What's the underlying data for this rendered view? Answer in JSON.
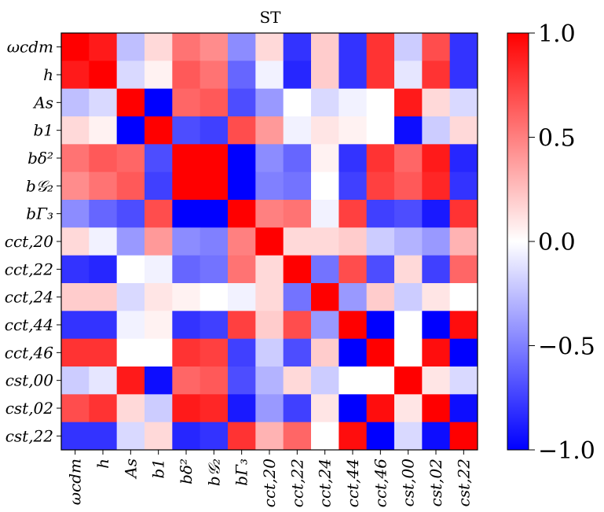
{
  "chart_data": {
    "type": "heatmap",
    "title": "ST",
    "colormap": "bwr",
    "vmin": -1.0,
    "vmax": 1.0,
    "labels": [
      "ωcdm",
      "h",
      "As",
      "b1",
      "bδ²",
      "b𝒢₂",
      "bΓ₃",
      "cct,20",
      "cct,22",
      "cct,24",
      "cct,44",
      "cct,46",
      "cst,00",
      "cst,02",
      "cst,22"
    ],
    "colorbar": {
      "ticks": [
        1.0,
        0.5,
        0.0,
        -0.5,
        -1.0
      ],
      "tick_labels": [
        "1.0",
        "0.5",
        "0.0",
        "−0.5",
        "−1.0"
      ]
    },
    "matrix": [
      [
        1.0,
        0.9,
        -0.25,
        0.15,
        0.55,
        0.45,
        -0.45,
        0.15,
        -0.8,
        0.2,
        -0.8,
        0.8,
        -0.2,
        0.7,
        -0.8
      ],
      [
        0.9,
        1.0,
        -0.15,
        0.05,
        0.65,
        0.55,
        -0.6,
        -0.05,
        -0.85,
        0.2,
        -0.8,
        0.8,
        -0.1,
        0.8,
        -0.8
      ],
      [
        -0.25,
        -0.15,
        1.0,
        -1.0,
        0.6,
        0.65,
        -0.7,
        -0.4,
        0.0,
        -0.15,
        -0.05,
        0.0,
        0.9,
        0.15,
        -0.15
      ],
      [
        0.15,
        0.05,
        -1.0,
        1.0,
        -0.7,
        -0.75,
        0.7,
        0.4,
        -0.05,
        0.1,
        0.05,
        0.0,
        -0.95,
        -0.2,
        0.15
      ],
      [
        0.55,
        0.65,
        0.6,
        -0.7,
        1.0,
        1.0,
        -1.0,
        -0.45,
        -0.6,
        0.05,
        -0.8,
        0.8,
        0.6,
        0.9,
        -0.85
      ],
      [
        0.45,
        0.55,
        0.65,
        -0.75,
        1.0,
        1.0,
        -1.0,
        -0.5,
        -0.55,
        0.0,
        -0.75,
        0.75,
        0.65,
        0.85,
        -0.8
      ],
      [
        -0.45,
        -0.6,
        -0.7,
        0.7,
        -1.0,
        -1.0,
        1.0,
        0.5,
        0.55,
        -0.05,
        0.75,
        -0.75,
        -0.7,
        -0.9,
        0.8
      ],
      [
        0.15,
        -0.05,
        -0.4,
        0.4,
        -0.45,
        -0.5,
        0.5,
        1.0,
        0.15,
        0.15,
        0.2,
        -0.2,
        -0.3,
        -0.4,
        0.3
      ],
      [
        -0.8,
        -0.85,
        0.0,
        -0.05,
        -0.6,
        -0.55,
        0.55,
        0.15,
        1.0,
        -0.55,
        0.7,
        -0.7,
        0.15,
        -0.75,
        0.6
      ],
      [
        0.2,
        0.2,
        -0.15,
        0.1,
        0.05,
        0.0,
        -0.05,
        0.15,
        -0.55,
        1.0,
        -0.4,
        0.2,
        -0.2,
        0.1,
        0.0
      ],
      [
        -0.8,
        -0.8,
        -0.05,
        0.05,
        -0.8,
        -0.75,
        0.75,
        0.2,
        0.7,
        -0.4,
        1.0,
        -1.0,
        0.0,
        -1.0,
        0.95
      ],
      [
        0.8,
        0.8,
        0.0,
        0.0,
        0.8,
        0.75,
        -0.75,
        -0.2,
        -0.7,
        0.2,
        -1.0,
        1.0,
        0.0,
        0.95,
        -1.0
      ],
      [
        -0.2,
        -0.1,
        0.9,
        -0.95,
        0.6,
        0.65,
        -0.7,
        -0.3,
        0.15,
        -0.2,
        0.0,
        0.0,
        1.0,
        0.1,
        -0.15
      ],
      [
        0.7,
        0.8,
        0.15,
        -0.2,
        0.9,
        0.85,
        -0.9,
        -0.4,
        -0.75,
        0.1,
        -1.0,
        0.95,
        0.1,
        1.0,
        -0.95
      ],
      [
        -0.8,
        -0.8,
        -0.15,
        0.15,
        -0.85,
        -0.8,
        0.8,
        0.3,
        0.6,
        0.0,
        0.95,
        -1.0,
        -0.15,
        -0.95,
        1.0
      ]
    ]
  }
}
